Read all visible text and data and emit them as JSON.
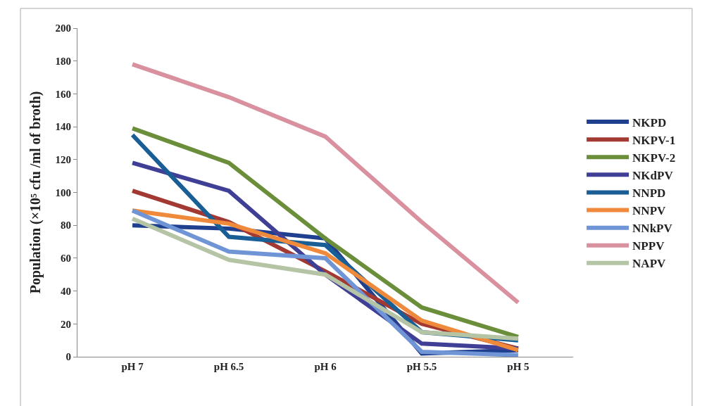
{
  "chart_data": {
    "type": "line",
    "ylabel": "Population (×10⁵ cfu /ml of broth)",
    "categories": [
      "pH 7",
      "pH 6.5",
      "pH 6",
      "pH 5.5",
      "pH 5"
    ],
    "ylim": [
      0,
      200
    ],
    "yticks": [
      0,
      20,
      40,
      60,
      80,
      100,
      120,
      140,
      160,
      180,
      200
    ],
    "legend": "right",
    "marker": "none",
    "line_style": "solid",
    "series": [
      {
        "name": "NKPD",
        "color": "#1f3f8f",
        "values": [
          80,
          78,
          72,
          2,
          4
        ]
      },
      {
        "name": "NKPV-1",
        "color": "#a23a33",
        "values": [
          101,
          82,
          52,
          20,
          5
        ]
      },
      {
        "name": "NKPV-2",
        "color": "#6b8e3a",
        "values": [
          139,
          118,
          72,
          30,
          12
        ]
      },
      {
        "name": "NKdPV",
        "color": "#3f3f96",
        "values": [
          118,
          101,
          50,
          8,
          5
        ]
      },
      {
        "name": "NNPD",
        "color": "#1a5e96",
        "values": [
          135,
          73,
          68,
          15,
          10
        ]
      },
      {
        "name": "NNPV",
        "color": "#ef8a3c",
        "values": [
          89,
          81,
          63,
          22,
          4
        ]
      },
      {
        "name": "NNkPV",
        "color": "#6f95d6",
        "values": [
          89,
          64,
          60,
          3,
          1
        ]
      },
      {
        "name": "NPPV",
        "color": "#d9909f",
        "values": [
          178,
          158,
          134,
          82,
          33
        ]
      },
      {
        "name": "NAPV",
        "color": "#b5c4a5",
        "values": [
          84,
          59,
          50,
          15,
          11
        ]
      }
    ]
  }
}
